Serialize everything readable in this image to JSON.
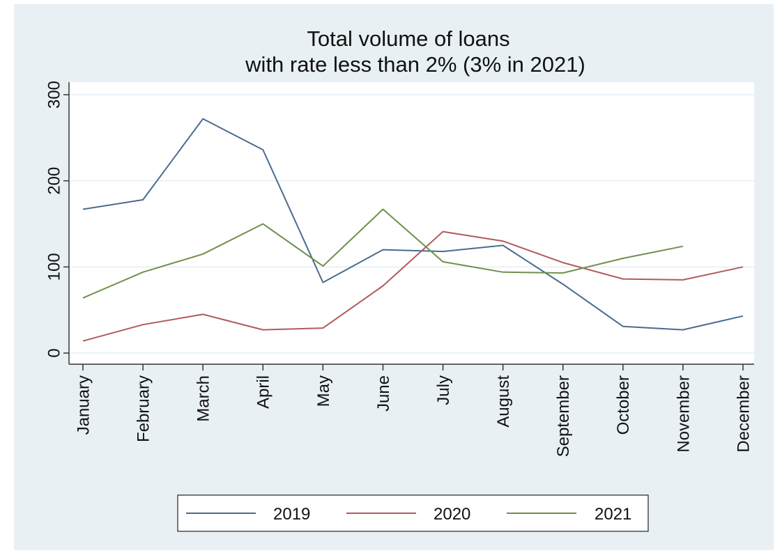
{
  "chart_data": {
    "type": "line",
    "title": [
      "Total volume of loans",
      "with rate less than 2% (3% in 2021)"
    ],
    "xlabel": "",
    "ylabel": "",
    "categories": [
      "January",
      "February",
      "March",
      "April",
      "May",
      "June",
      "July",
      "August",
      "September",
      "October",
      "November",
      "December"
    ],
    "ylim": [
      0,
      300
    ],
    "yticks": [
      0,
      100,
      200,
      300
    ],
    "grid": true,
    "legend": "bottom",
    "series": [
      {
        "name": "2019",
        "color": "#4a6b8f",
        "values": [
          167,
          178,
          272,
          236,
          82,
          120,
          118,
          125,
          80,
          31,
          27,
          43
        ]
      },
      {
        "name": "2020",
        "color": "#b05a5e",
        "values": [
          14,
          33,
          45,
          27,
          29,
          78,
          141,
          130,
          105,
          86,
          85,
          100
        ]
      },
      {
        "name": "2021",
        "color": "#6f8f4a",
        "values": [
          64,
          94,
          115,
          150,
          101,
          167,
          106,
          94,
          93,
          110,
          124,
          null
        ]
      }
    ]
  },
  "colors": {
    "outer_background": "#e9f0f3",
    "plot_background": "#ffffff",
    "grid": "#e6eef2",
    "axis": "#333333"
  }
}
